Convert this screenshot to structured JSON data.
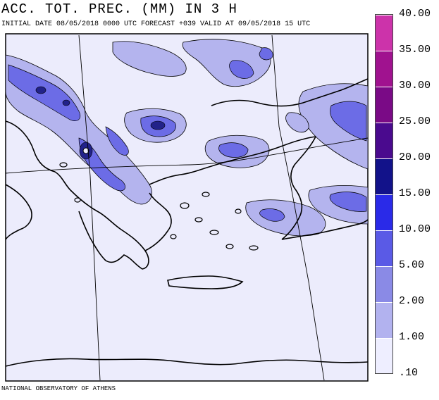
{
  "header": {
    "title": "ACC. TOT. PREC. (MM) IN 3 H",
    "subtitle": "INITIAL DATE 08/05/2018   0000 UTC  FORECAST +039 VALID AT  09/05/2018  15 UTC"
  },
  "footer": {
    "credit": "NATIONAL OBSERVATORY OF ATHENS"
  },
  "legend": {
    "labels": [
      "40.00",
      "35.00",
      "30.00",
      "25.00",
      "20.00",
      "15.00",
      "10.00",
      "5.00",
      "2.00",
      "1.00",
      ".10"
    ],
    "colors": [
      "#cc33aa",
      "#a0128f",
      "#7a0a86",
      "#4a0a8e",
      "#12128a",
      "#2a2ae8",
      "#5a5ae6",
      "#8a8ae6",
      "#b2b2ef",
      "#d4d4f6",
      "#eeeeff"
    ]
  }
}
